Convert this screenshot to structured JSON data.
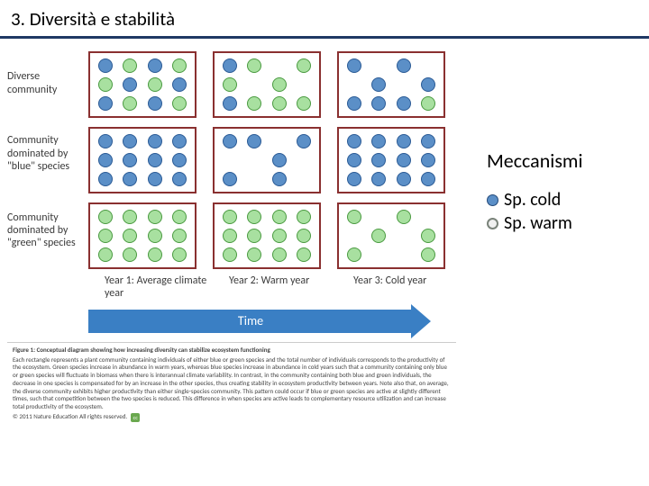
{
  "title": "3.  Diversità e stabilità",
  "sidebar": {
    "heading": "Meccanismi",
    "legend": [
      {
        "label": "Sp. cold",
        "bulletClass": "cold"
      },
      {
        "label": "Sp. warm",
        "bulletClass": "warm"
      }
    ]
  },
  "figure": {
    "rowLabels": [
      "Diverse community",
      "Community dominated by \"blue\" species",
      "Community dominated by \"green\" species"
    ],
    "colLabels": [
      "Year 1: Average climate year",
      "Year 2: Warm year",
      "Year 3: Cold year"
    ],
    "timeLabel": "Time",
    "colors": {
      "blue": "#5b8fc7",
      "green": "#a8e0a0",
      "border": "#8a3030",
      "arrow": "#3a7fc4"
    },
    "cells": [
      [
        "blue",
        "green",
        "blue",
        "green",
        "green",
        "blue",
        "green",
        "blue",
        "blue",
        "green",
        "blue",
        "green"
      ],
      [
        "blue",
        "green",
        "empty",
        "green",
        "green",
        "empty",
        "green",
        "empty",
        "blue",
        "green",
        "green",
        "green"
      ],
      [
        "blue",
        "empty",
        "blue",
        "empty",
        "empty",
        "blue",
        "empty",
        "blue",
        "blue",
        "blue",
        "blue",
        "green"
      ],
      [
        "blue",
        "blue",
        "blue",
        "blue",
        "blue",
        "blue",
        "blue",
        "blue",
        "blue",
        "blue",
        "blue",
        "blue"
      ],
      [
        "blue",
        "blue",
        "empty",
        "blue",
        "empty",
        "empty",
        "blue",
        "empty",
        "blue",
        "empty",
        "blue",
        "empty"
      ],
      [
        "blue",
        "blue",
        "blue",
        "blue",
        "blue",
        "blue",
        "blue",
        "blue",
        "blue",
        "blue",
        "blue",
        "blue"
      ],
      [
        "green",
        "green",
        "green",
        "green",
        "green",
        "green",
        "green",
        "green",
        "green",
        "green",
        "green",
        "green"
      ],
      [
        "green",
        "green",
        "green",
        "green",
        "green",
        "green",
        "green",
        "green",
        "green",
        "green",
        "green",
        "green"
      ],
      [
        "green",
        "empty",
        "green",
        "empty",
        "empty",
        "green",
        "empty",
        "green",
        "green",
        "empty",
        "empty",
        "green"
      ]
    ],
    "caption": {
      "title": "Figure 1: Conceptual diagram showing how increasing diversity can stabilize ecosystem functioning",
      "body": "Each rectangle represents a plant community containing individuals of either blue or green species and the total number of individuals corresponds to the productivity of the ecosystem. Green species increase in abundance in warm years, whereas blue species increase in abundance in cold years such that a community containing only blue or green species will fluctuate in biomass when there is interannual climate variability. In contrast, in the community containing both blue and green individuals, the decrease in one species is compensated for by an increase in the other species, thus creating stability in ecosystem productivity between years. Note also that, on average, the diverse community exhibits higher productivity than either single-species community. This pattern could occur if blue or green species are active at slightly different times, such that competition between the two species is reduced. This difference in when species are active leads to complementary resource utilization and can increase total productivity of the ecosystem.",
      "copyright": "© 2011 Nature Education All rights reserved."
    }
  }
}
